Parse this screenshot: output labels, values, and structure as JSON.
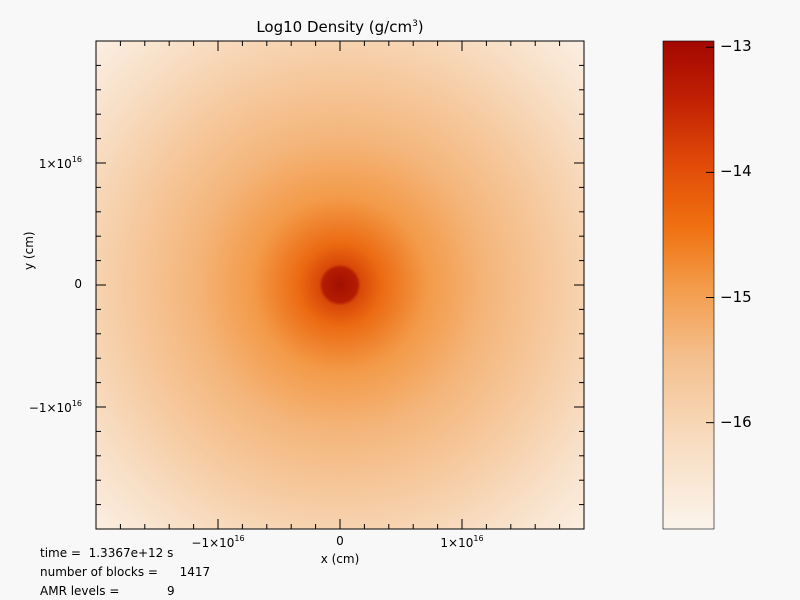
{
  "chart_data": {
    "type": "heatmap",
    "title_main": "Log10 Density (g/cm",
    "title_sup": "3",
    "title_end": ")",
    "xlabel": "x (cm)",
    "ylabel": "y (cm)",
    "x_ticks": [
      {
        "value": -1e+16,
        "mantissa": "−1×10",
        "exp": "16"
      },
      {
        "value": 0,
        "mantissa": "0",
        "exp": ""
      },
      {
        "value": 1e+16,
        "mantissa": "1×10",
        "exp": "16"
      }
    ],
    "y_ticks": [
      {
        "value": 1e+16,
        "mantissa": "1×10",
        "exp": "16"
      },
      {
        "value": 0,
        "mantissa": "0",
        "exp": ""
      },
      {
        "value": -1e+16,
        "mantissa": "−1×10",
        "exp": "16"
      }
    ],
    "xlim": [
      -2e+16,
      2e+16
    ],
    "ylim": [
      -2e+16,
      2e+16
    ],
    "colorbar": {
      "range": [
        -16.85,
        -12.95
      ],
      "ticks": [
        {
          "value": -13,
          "label": "−13"
        },
        {
          "value": -14,
          "label": "−14"
        },
        {
          "value": -15,
          "label": "−15"
        },
        {
          "value": -16,
          "label": "−16"
        }
      ],
      "colors": [
        "#fbf4ec",
        "#f8dcc0",
        "#f4c08e",
        "#f39a48",
        "#f07010",
        "#e04a08",
        "#c22004",
        "#a20800"
      ]
    },
    "field": {
      "center": [
        0,
        0
      ],
      "center_value": -13.1,
      "edge_value": -16.6,
      "corner_value": -16.8
    }
  },
  "info": {
    "time_label": "time =  ",
    "time_value": "1.3367e+12 s",
    "blocks_label": "number of blocks =  ",
    "blocks_value": "1417",
    "amr_label": "AMR levels =  ",
    "amr_value": "9"
  }
}
